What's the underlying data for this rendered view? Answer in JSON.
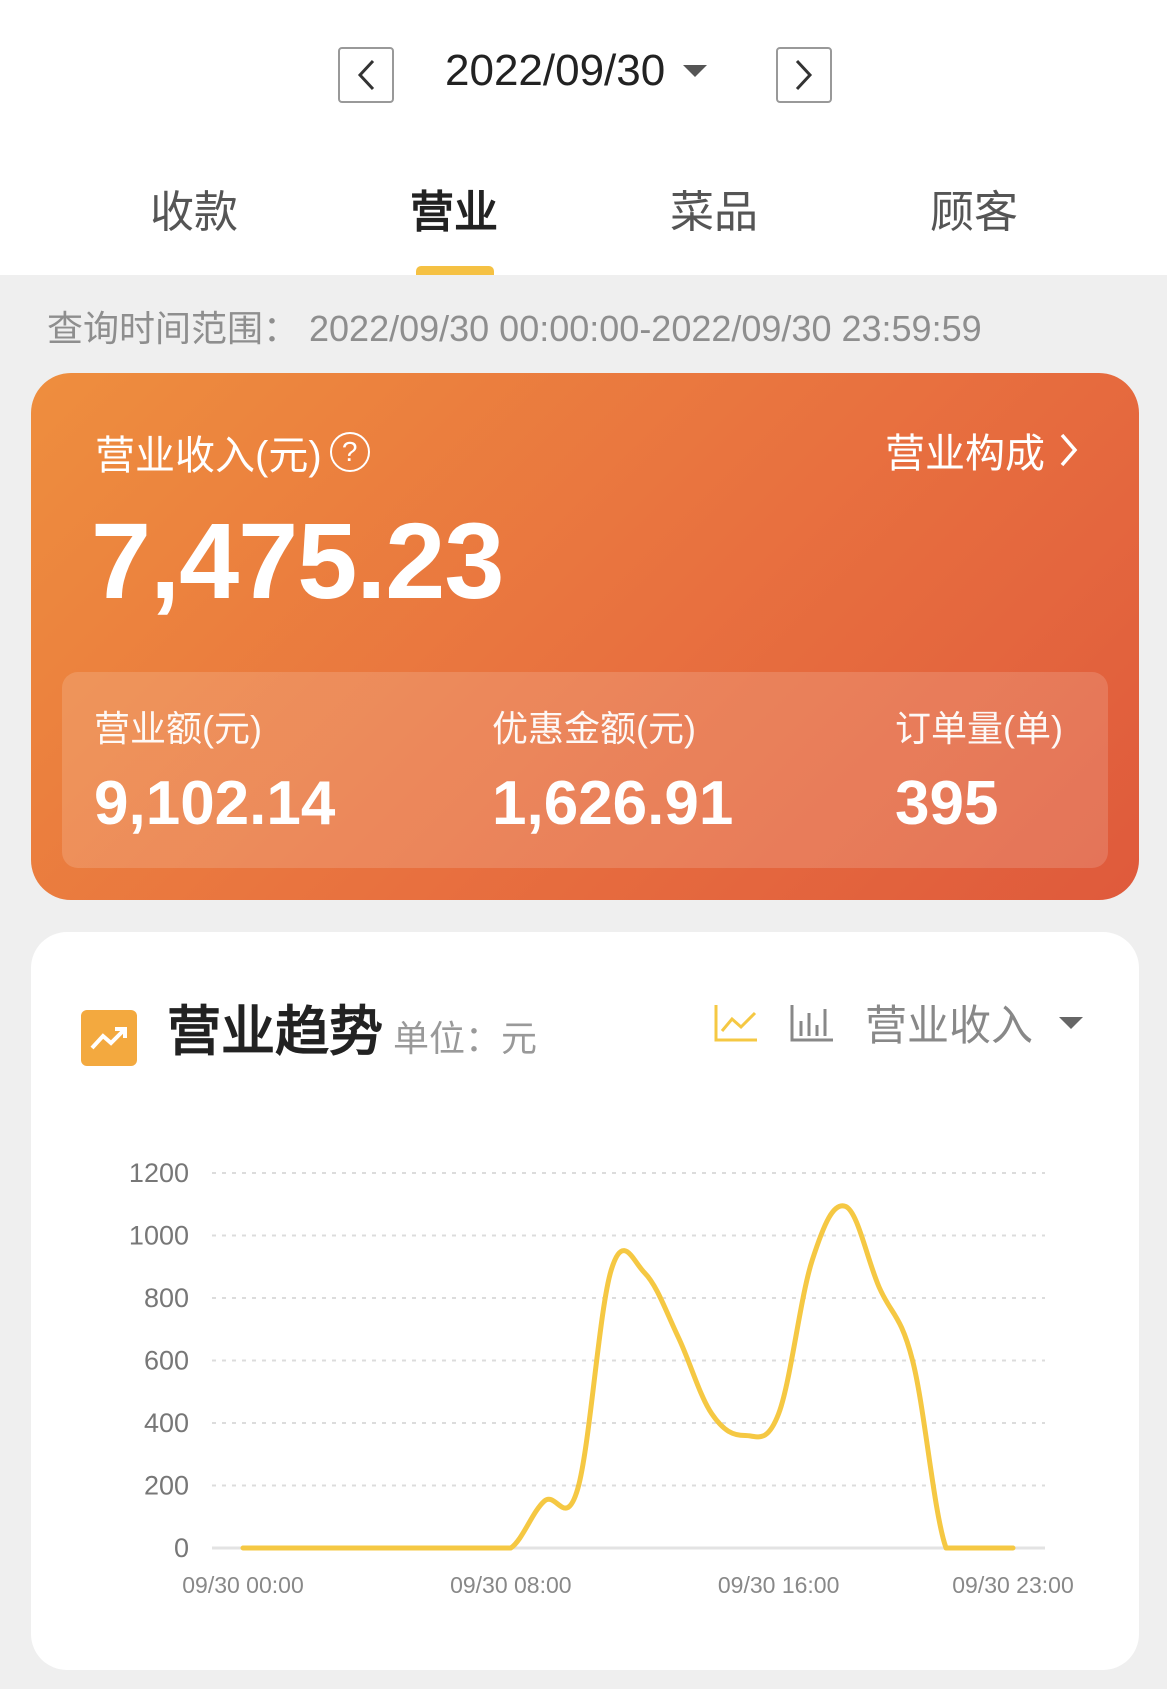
{
  "header": {
    "date": "2022/09/30",
    "prev_icon": "chevron-left-icon",
    "next_icon": "chevron-right-icon"
  },
  "tabs": [
    {
      "label": "收款"
    },
    {
      "label": "营业",
      "active": true
    },
    {
      "label": "菜品"
    },
    {
      "label": "顾客"
    }
  ],
  "query_range": "查询时间范围：  2022/09/30 00:00:00-2022/09/30 23:59:59",
  "summary": {
    "revenue_label": "营业收入(元)",
    "revenue_value": "7,475.23",
    "compose_link": "营业构成",
    "stats": [
      {
        "label": "营业额(元)",
        "value": "9,102.14"
      },
      {
        "label": "优惠金额(元)",
        "value": "1,626.91"
      },
      {
        "label": "订单量(单)",
        "value": "395"
      }
    ],
    "gradient": [
      "#ee8e3e",
      "#df5a3c"
    ]
  },
  "trend": {
    "title": "营业趋势",
    "unit": "单位：元",
    "metric_select": "营业收入",
    "active_chart": "line"
  },
  "chart_data": {
    "type": "line",
    "color": "#f5c843",
    "x": [
      "00:00",
      "01:00",
      "02:00",
      "03:00",
      "04:00",
      "05:00",
      "06:00",
      "07:00",
      "08:00",
      "09:00",
      "10:00",
      "11:00",
      "12:00",
      "13:00",
      "14:00",
      "15:00",
      "16:00",
      "17:00",
      "18:00",
      "19:00",
      "20:00",
      "21:00",
      "22:00",
      "23:00"
    ],
    "values": [
      0,
      0,
      0,
      0,
      0,
      0,
      0,
      0,
      0,
      150,
      190,
      890,
      880,
      675,
      430,
      360,
      430,
      920,
      1093,
      835,
      600,
      0,
      0,
      0
    ],
    "xtick_labels": [
      "09/30 00:00",
      "09/30 08:00",
      "09/30 16:00",
      "09/30 23:00"
    ],
    "xtick_index": [
      0,
      8,
      16,
      23
    ],
    "ytick_labels": [
      "0",
      "200",
      "400",
      "600",
      "800",
      "1000",
      "1200"
    ],
    "ylim": [
      0,
      1200
    ],
    "grid": true
  }
}
